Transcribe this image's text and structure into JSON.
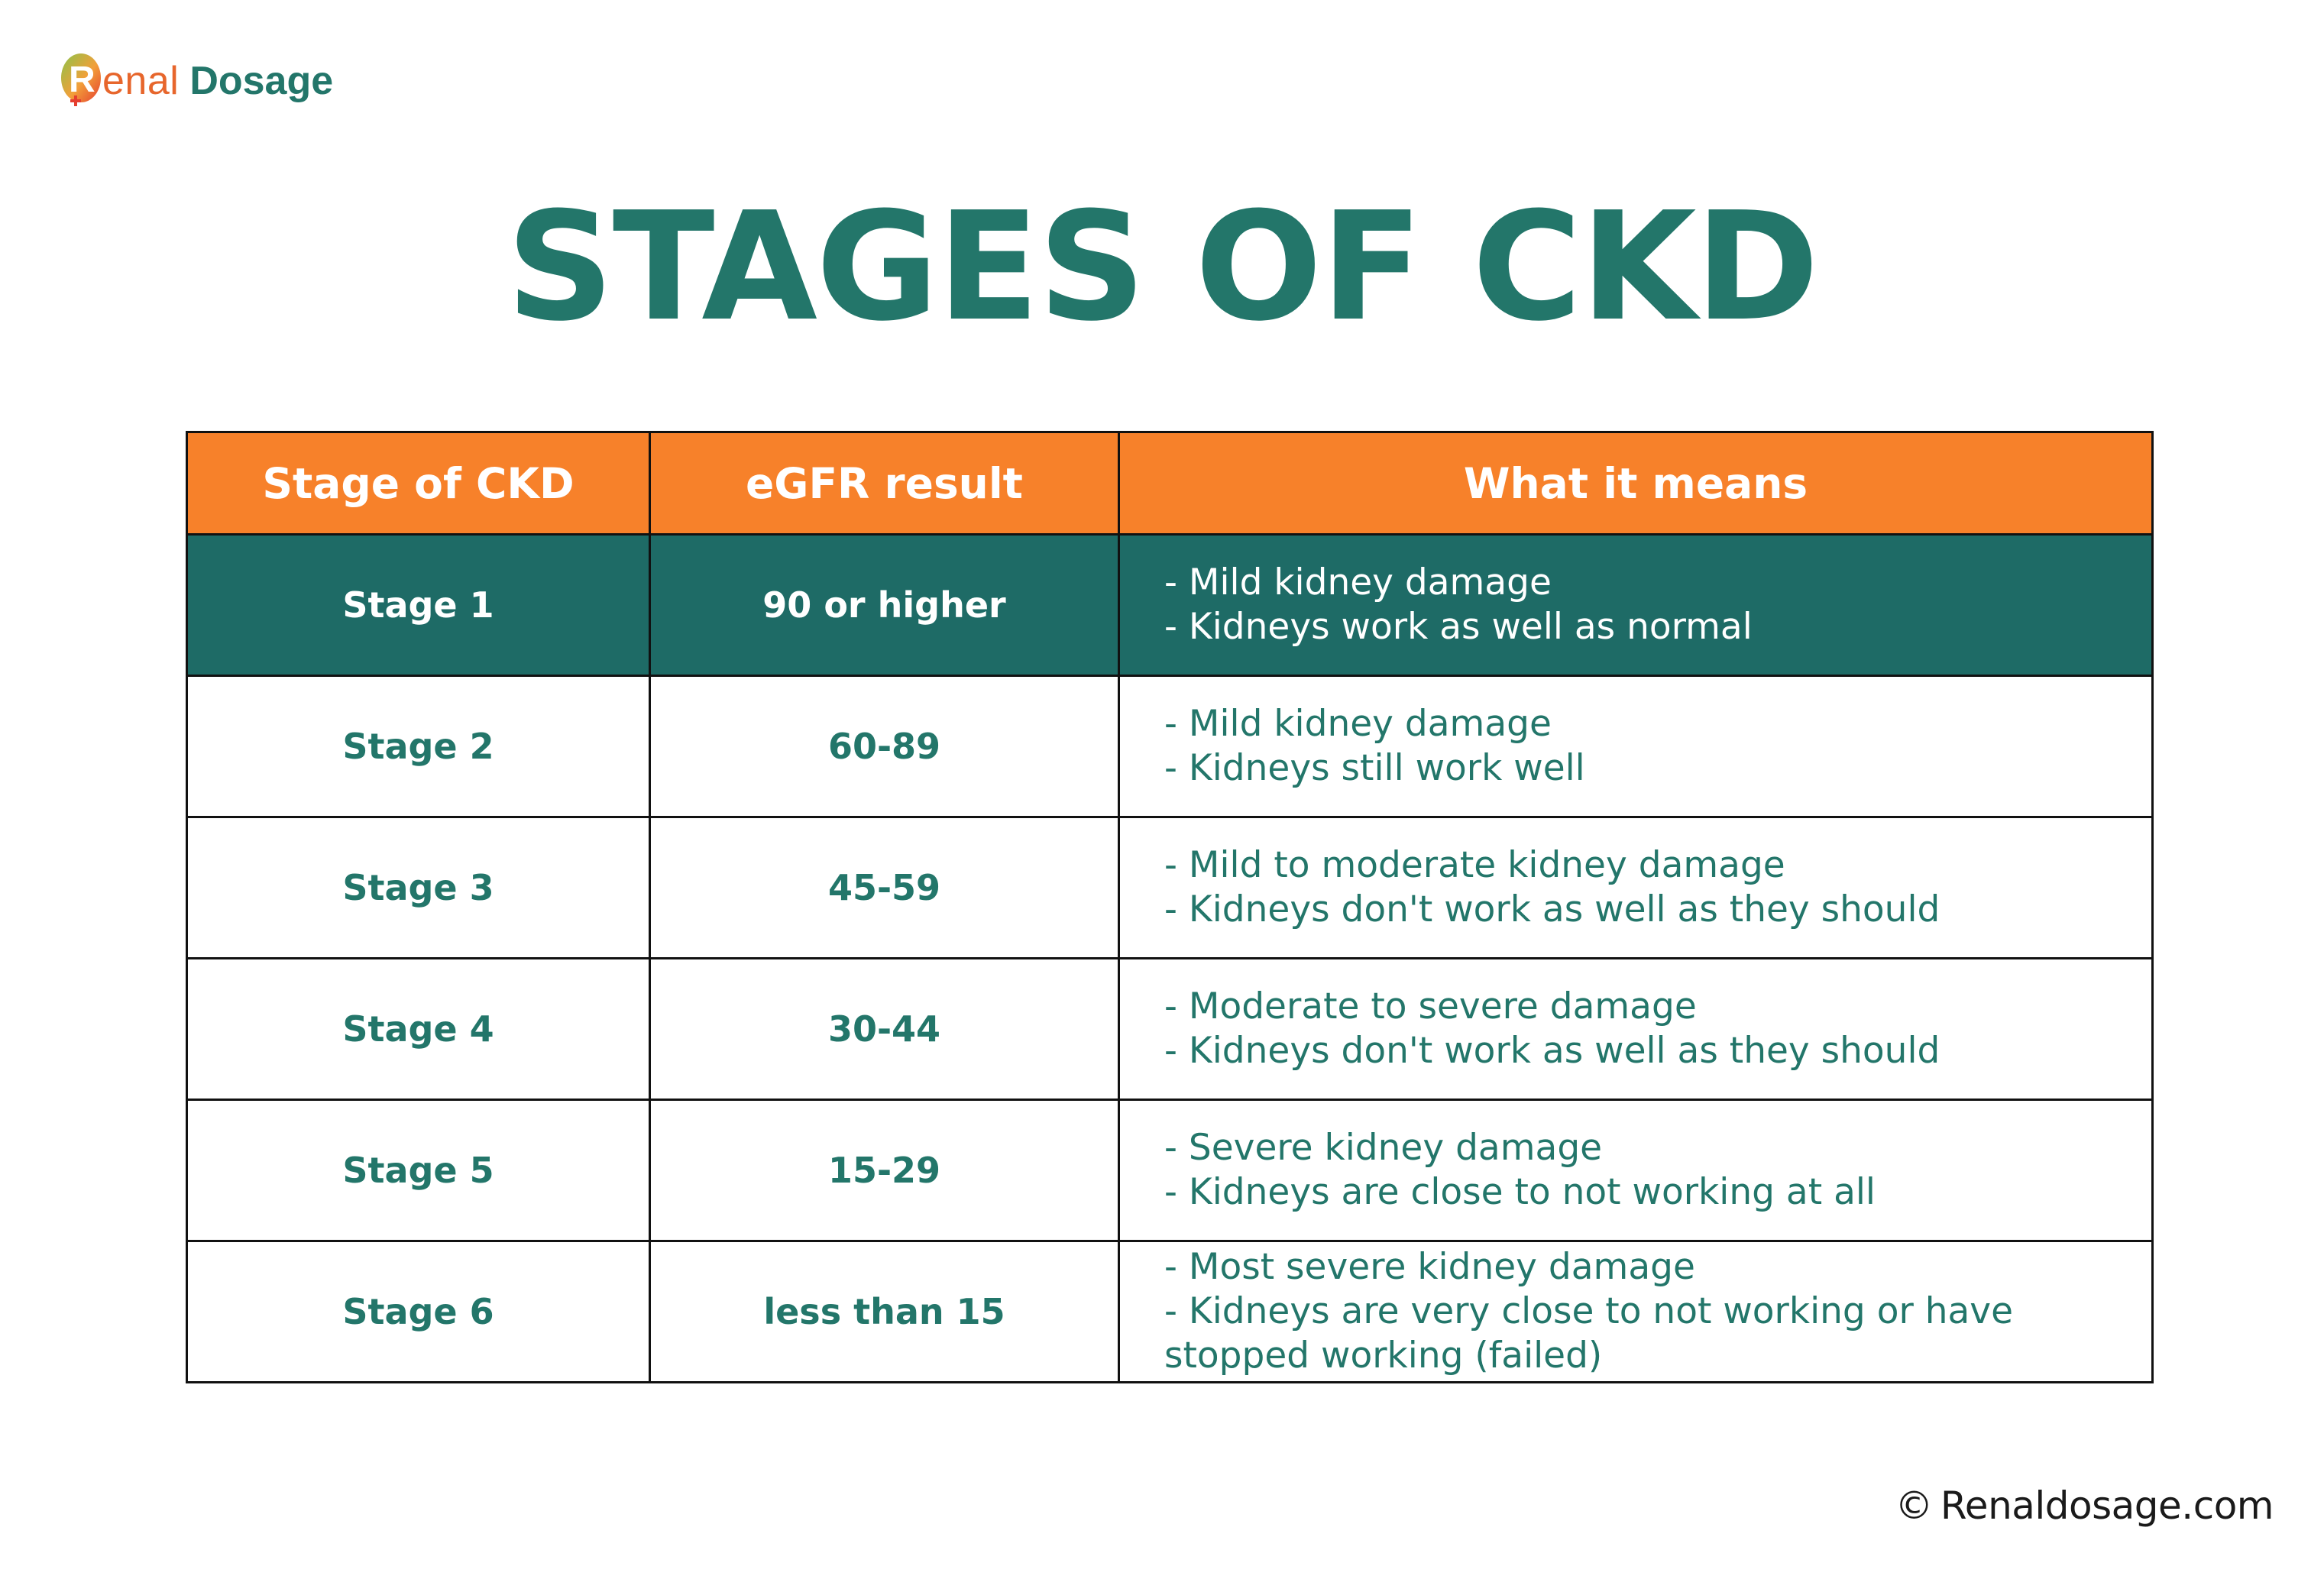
{
  "brand": {
    "renal": "enal",
    "dosage": "Dosage",
    "mark_letter": "R",
    "colors": {
      "primary": "#23766a",
      "accent": "#f7812a",
      "highlight_row": "#1e6b66",
      "logo_orange": "#e7662c"
    }
  },
  "title": "STAGES OF CKD",
  "table": {
    "headers": [
      "Stage of CKD",
      "eGFR result",
      "What it means"
    ],
    "rows": [
      {
        "stage": "Stage 1",
        "egfr": "90 or higher",
        "meaning": [
          "- Mild kidney damage",
          "- Kidneys work as well as normal"
        ]
      },
      {
        "stage": "Stage 2",
        "egfr": "60-89",
        "meaning": [
          "- Mild kidney damage",
          "- Kidneys still work well"
        ]
      },
      {
        "stage": "Stage 3",
        "egfr": "45-59",
        "meaning": [
          "- Mild to moderate kidney damage",
          "- Kidneys don't work as well as they should"
        ]
      },
      {
        "stage": "Stage 4",
        "egfr": "30-44",
        "meaning": [
          "- Moderate to severe damage",
          "- Kidneys don't work as well as they should"
        ]
      },
      {
        "stage": "Stage 5",
        "egfr": "15-29",
        "meaning": [
          "- Severe kidney damage",
          "- Kidneys are close to not working at all"
        ]
      },
      {
        "stage": "Stage 6",
        "egfr": "less than 15",
        "meaning": [
          "- Most severe kidney damage",
          "- Kidneys are very close to not working or have",
          "stopped working (failed)"
        ]
      }
    ]
  },
  "footer": {
    "copyright_symbol": "©",
    "site": "Renaldosage.com"
  }
}
